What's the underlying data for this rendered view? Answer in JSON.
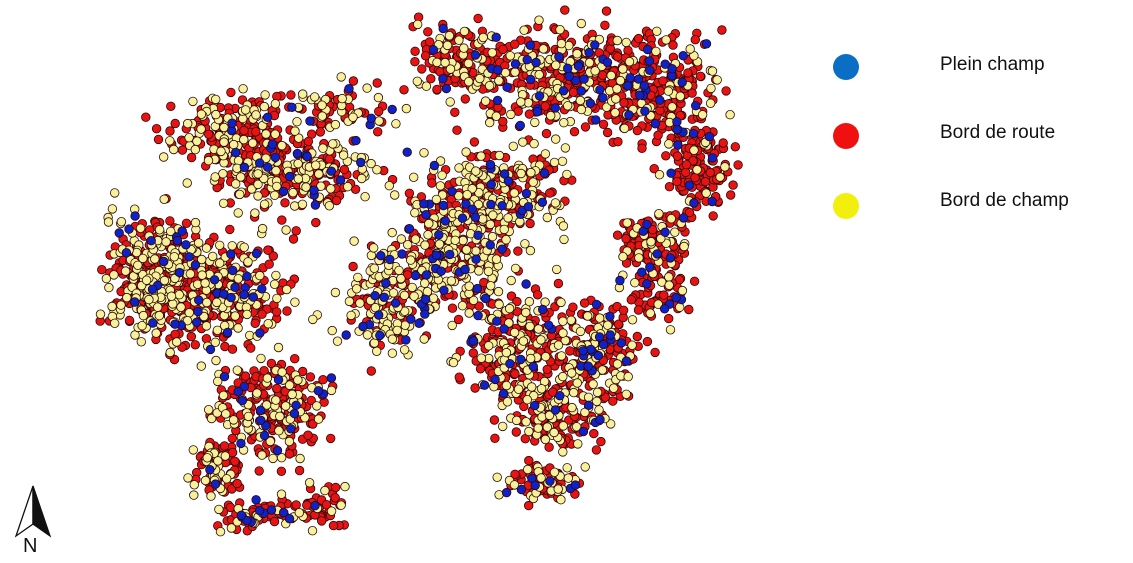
{
  "map": {
    "north_label": "N",
    "colors": {
      "plein_champ": "#0f22c8",
      "bord_de_route": "#e81414",
      "bord_de_champ": "#f6f19a",
      "outline": "#2a0606"
    }
  },
  "legend": {
    "items": [
      {
        "label": "Plein champ",
        "color": "#0a6fc4"
      },
      {
        "label": "Bord de route",
        "color": "#f01010"
      },
      {
        "label": "Bord de champ",
        "color": "#f3ef0c"
      }
    ]
  }
}
